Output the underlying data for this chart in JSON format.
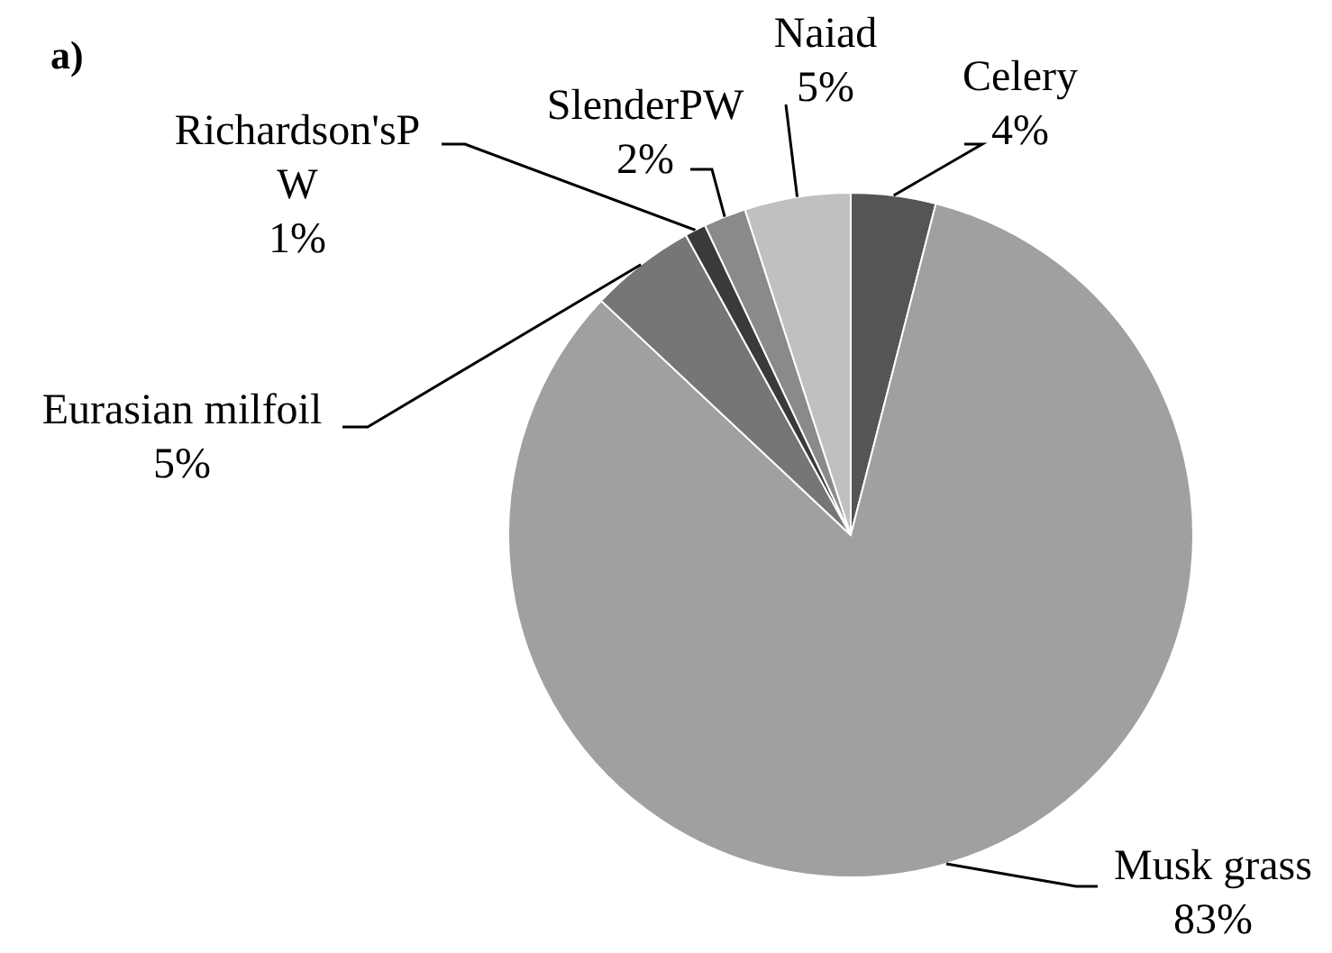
{
  "chart_data": {
    "type": "pie",
    "title": "a)",
    "categories": [
      "Celery",
      "Musk grass",
      "Eurasian milfoil",
      "Richardson'sPW",
      "SlenderPW",
      "Naiad"
    ],
    "values": [
      4,
      83,
      5,
      1,
      2,
      5
    ],
    "value_labels": [
      "4%",
      "83%",
      "5%",
      "1%",
      "2%",
      "5%"
    ],
    "colors": [
      "#555555",
      "#a0a0a0",
      "#767676",
      "#3a3a3a",
      "#8a8a8a",
      "#c0c0c0"
    ]
  }
}
